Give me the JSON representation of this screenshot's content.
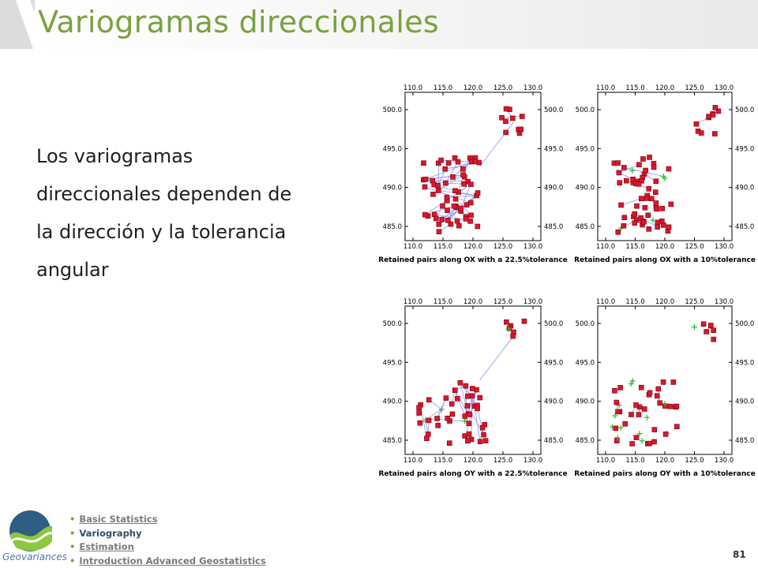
{
  "title": "Variogramas direccionales",
  "body_lines": [
    "Los variogramas",
    "direccionales dependen de",
    "la dirección y la tolerancia",
    "angular"
  ],
  "logo_text": "Geovariances",
  "nav": [
    {
      "label": "Basic Statistics",
      "current": false
    },
    {
      "label": "Variography",
      "current": true
    },
    {
      "label": "Estimation",
      "current": false
    },
    {
      "label": "Introduction Advanced Geostatistics",
      "current": false
    }
  ],
  "page_number": "81",
  "colors": {
    "title": "#7aa23f",
    "pair_lines": "#8f93e8",
    "sample_marker": "#d9182a",
    "excluded_marker": "#2db52d"
  },
  "plots": [
    {
      "caption": "Retained pairs along OX with a 22.5%tolerance",
      "variant": "ox225",
      "x_ticks": [
        "110.0",
        "115.0",
        "120.0",
        "125.0",
        "130.0"
      ],
      "y_ticks": [
        "500.0",
        "495.0",
        "490.0",
        "485.0"
      ]
    },
    {
      "caption": "Retained pairs along OX with a 10%tolerance",
      "variant": "ox10",
      "x_ticks": [
        "110.0",
        "115.0",
        "120.0",
        "125.0",
        "130.0"
      ],
      "y_ticks": [
        "500.0",
        "495.0",
        "490.0",
        "485.0"
      ]
    },
    {
      "caption": "Retained pairs along OY with a 22.5%tolerance",
      "variant": "oy225",
      "x_ticks": [
        "110.0",
        "115.0",
        "120.0",
        "125.0",
        "130.0"
      ],
      "y_ticks": [
        "500.0",
        "495.0",
        "490.0",
        "485.0"
      ]
    },
    {
      "caption": "Retained pairs along OY with a 10%tolerance",
      "variant": "oy10",
      "x_ticks": [
        "110.0",
        "115.0",
        "120.0",
        "125.0",
        "130.0"
      ],
      "y_ticks": [
        "500.0",
        "495.0",
        "490.0",
        "485.0"
      ]
    }
  ]
}
